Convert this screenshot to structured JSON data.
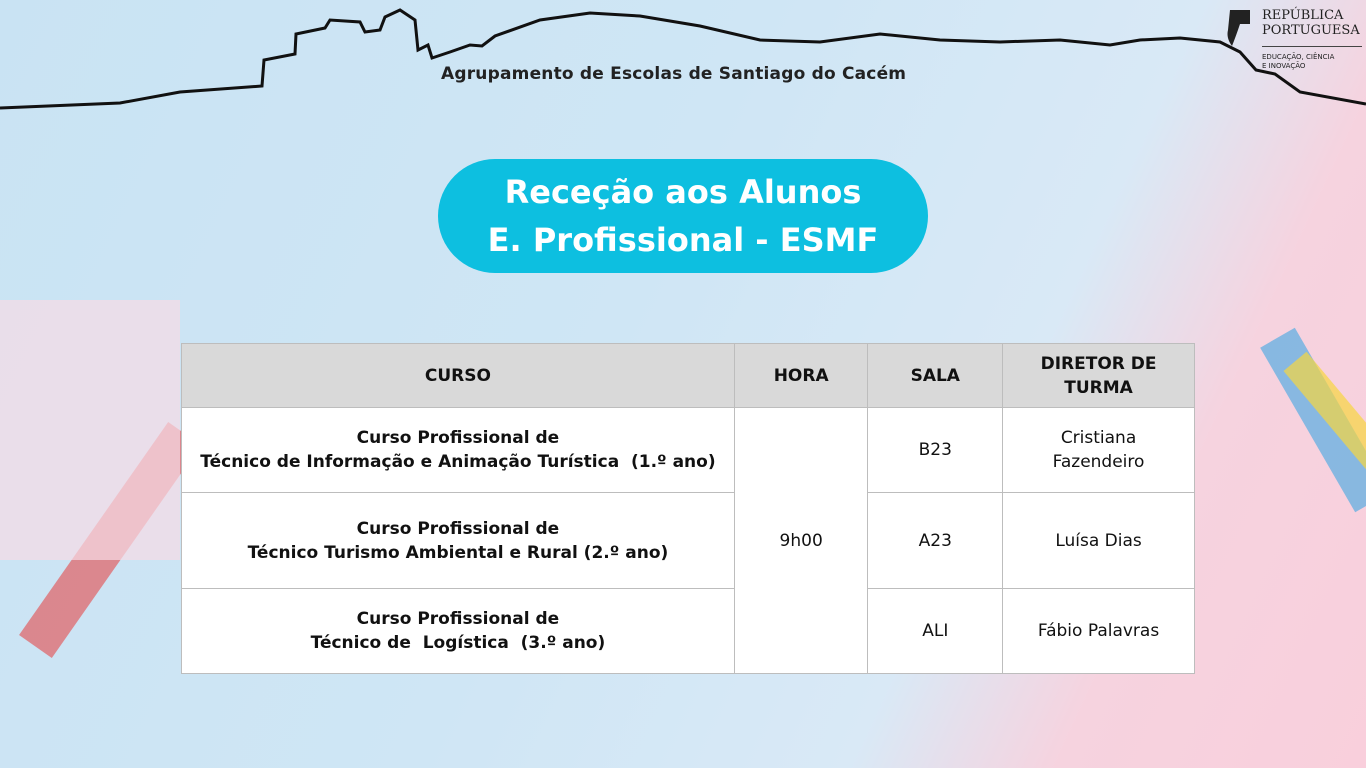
{
  "header": {
    "school": "Agrupamento de Escolas de Santiago do Cacém",
    "logo": {
      "line1": "REPÚBLICA",
      "line2": "PORTUGUESA",
      "line3": "EDUCAÇÃO, CIÊNCIA",
      "line4": "E INOVAÇÃO"
    }
  },
  "title": {
    "line1": "Receção aos Alunos",
    "line2": "E. Profissional - ESMF"
  },
  "table": {
    "headers": [
      "CURSO",
      "HORA",
      "SALA",
      "DIRETOR DE TURMA"
    ],
    "hora": "9h00",
    "rows": [
      {
        "curso_l1": "Curso Profissional de",
        "curso_l2": "Técnico de Informação e Animação Turística  (1.º ano)",
        "sala": "B23",
        "diretor": "Cristiana Fazendeiro"
      },
      {
        "curso_l1": "Curso Profissional de",
        "curso_l2": "Técnico Turismo Ambiental e Rural (2.º ano)",
        "sala": "A23",
        "diretor": "Luísa Dias"
      },
      {
        "curso_l1": "Curso Profissional de",
        "curso_l2": "Técnico de  Logística  (3.º ano)",
        "sala": "ALI",
        "diretor": "Fábio Palavras"
      }
    ]
  },
  "colors": {
    "accent": "#0dbfe0",
    "header_bg": "#d9d9d9"
  }
}
